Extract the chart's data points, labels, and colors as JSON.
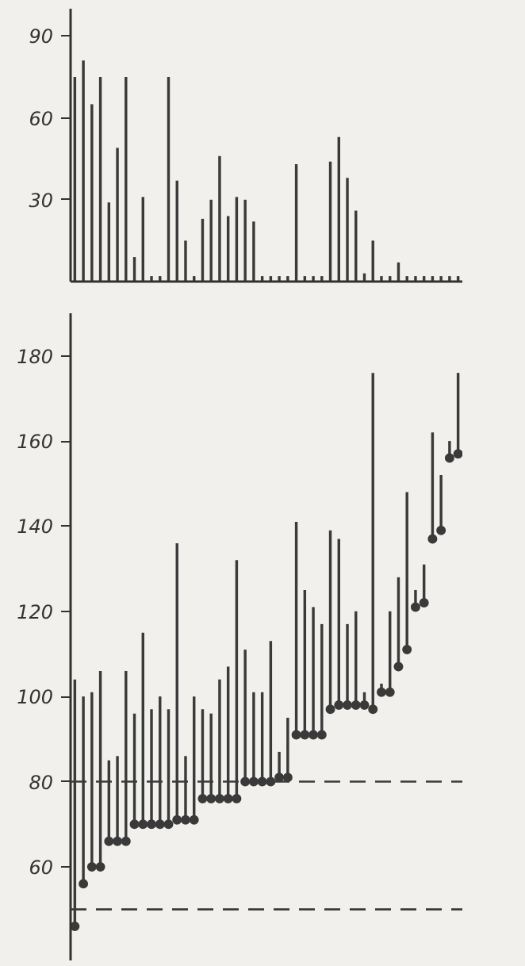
{
  "chart_data": [
    {
      "type": "bar",
      "categories": [
        null,
        null,
        null,
        null,
        null,
        null,
        null,
        null,
        null,
        null,
        null,
        null,
        null,
        null,
        null,
        null,
        null,
        null,
        null,
        null,
        null,
        null,
        null,
        null,
        null,
        null,
        null,
        null,
        null,
        null,
        null,
        null,
        null,
        null,
        null,
        null,
        null,
        null,
        null,
        null,
        null,
        null,
        null,
        null,
        null,
        null
      ],
      "values": [
        75,
        81,
        65,
        75,
        29,
        49,
        75,
        9,
        31,
        2,
        2,
        75,
        37,
        15,
        2,
        23,
        30,
        46,
        24,
        31,
        30,
        22,
        2,
        2,
        2,
        2,
        43,
        2,
        2,
        2,
        44,
        53,
        38,
        26,
        3,
        15,
        2,
        2,
        7,
        2,
        2,
        2,
        2,
        2,
        2,
        2
      ],
      "color": "#3a3a3a",
      "ylim": [
        0,
        100
      ],
      "yticks": [
        30,
        60,
        90
      ],
      "grid": false,
      "tick_labels": "y"
    },
    {
      "type": "bar",
      "categories": [
        null,
        null,
        null,
        null,
        null,
        null,
        null,
        null,
        null,
        null,
        null,
        null,
        null,
        null,
        null,
        null,
        null,
        null,
        null,
        null,
        null,
        null,
        null,
        null,
        null,
        null,
        null,
        null,
        null,
        null,
        null,
        null,
        null,
        null,
        null,
        null,
        null,
        null,
        null,
        null,
        null,
        null,
        null,
        null,
        null,
        null
      ],
      "series": [
        {
          "type": "bar",
          "color": "#3a3a3a",
          "base": [
            46,
            56,
            60,
            60,
            66,
            66,
            66,
            70,
            70,
            70,
            70,
            70,
            71,
            71,
            71,
            76,
            76,
            76,
            76,
            76,
            80,
            80,
            80,
            80,
            81,
            81,
            91,
            91,
            91,
            91,
            97,
            98,
            98,
            98,
            98,
            97,
            101,
            101,
            107,
            111,
            121,
            122,
            137,
            139,
            156,
            157
          ],
          "values": [
            58,
            44,
            41,
            46,
            19,
            20,
            40,
            26,
            45,
            27,
            30,
            27,
            65,
            15,
            29,
            21,
            20,
            28,
            31,
            56,
            31,
            21,
            21,
            33,
            6,
            14,
            50,
            34,
            30,
            26,
            42,
            39,
            19,
            22,
            3,
            79,
            2,
            19,
            21,
            37,
            4,
            9,
            25,
            13,
            4,
            19
          ]
        },
        {
          "type": "scatter",
          "color": "#3a3a3a",
          "marker": "circle",
          "values": [
            46,
            56,
            60,
            60,
            66,
            66,
            66,
            70,
            70,
            70,
            70,
            70,
            71,
            71,
            71,
            76,
            76,
            76,
            76,
            76,
            80,
            80,
            80,
            80,
            81,
            81,
            91,
            91,
            91,
            91,
            97,
            98,
            98,
            98,
            98,
            97,
            101,
            101,
            107,
            111,
            121,
            122,
            137,
            139,
            156,
            157
          ]
        }
      ],
      "ylim": [
        38,
        190
      ],
      "yticks": [
        60,
        80,
        100,
        120,
        140,
        160,
        180
      ],
      "grid": false,
      "tick_labels": "y",
      "ref_lines": [
        {
          "axis": "y",
          "value": 80,
          "line_style": "dashed",
          "color": "#3a3a3a"
        },
        {
          "axis": "y",
          "value": 50,
          "line_style": "dashed",
          "color": "#3a3a3a"
        }
      ]
    }
  ]
}
